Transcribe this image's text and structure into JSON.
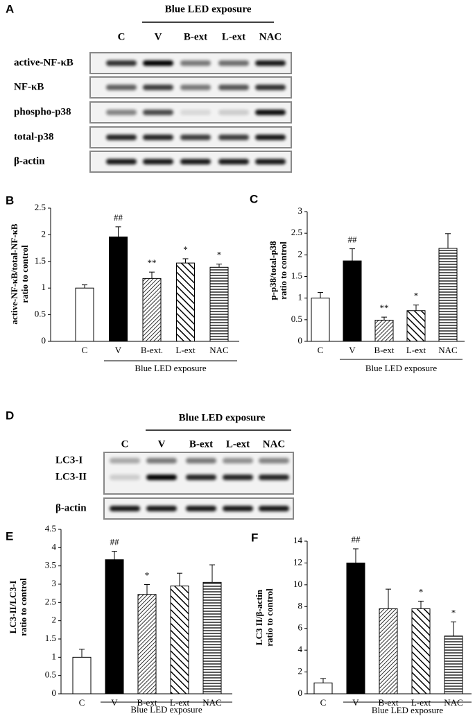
{
  "blots": [
    {
      "panel": "A",
      "header": "Blue LED exposure",
      "lanes": [
        "C",
        "V",
        "B-ext",
        "L-ext",
        "NAC"
      ],
      "rows": [
        "active-NF-κB",
        "NF-κB",
        "phospho-p38",
        "total-p38",
        "β-actin"
      ]
    },
    {
      "panel": "D",
      "header": "Blue LED exposure",
      "lanes": [
        "C",
        "V",
        "B-ext",
        "L-ext",
        "NAC"
      ],
      "rows": [
        "LC3-I",
        "LC3-II",
        "β-actin"
      ]
    }
  ],
  "chart_data": [
    {
      "type": "bar",
      "panel": "B",
      "ylabel": [
        "active-NF-κB/total-NF-κB",
        "ratio to control"
      ],
      "categories": [
        "C",
        "V",
        "B-ext.",
        "L-ext",
        "NAC"
      ],
      "values": [
        1.0,
        1.96,
        1.18,
        1.47,
        1.39
      ],
      "errors": [
        0.06,
        0.19,
        0.12,
        0.08,
        0.06
      ],
      "significance": [
        null,
        "##",
        "**",
        "*",
        "*"
      ],
      "group_label": "Blue LED exposure",
      "ylim": [
        0,
        2.5
      ],
      "yticks": [
        0,
        0.5,
        1,
        1.5,
        2,
        2.5
      ]
    },
    {
      "type": "bar",
      "panel": "C",
      "ylabel": [
        "p-p38/total-p38",
        "ratio to control"
      ],
      "categories": [
        "C",
        "V",
        "B-ext",
        "L-ext",
        "NAC"
      ],
      "values": [
        1.0,
        1.86,
        0.49,
        0.71,
        2.15
      ],
      "errors": [
        0.13,
        0.28,
        0.07,
        0.13,
        0.34
      ],
      "significance": [
        null,
        "##",
        "**",
        "*",
        null
      ],
      "group_label": "Blue LED exposure",
      "ylim": [
        0,
        3
      ],
      "yticks": [
        0,
        0.5,
        1,
        1.5,
        2,
        2.5,
        3
      ]
    },
    {
      "type": "bar",
      "panel": "E",
      "ylabel": [
        "LC3-II/LC3-I",
        "ratio to control"
      ],
      "categories": [
        "C",
        "V",
        "B-ext",
        "L-ext",
        "NAC"
      ],
      "values": [
        1.0,
        3.67,
        2.72,
        2.95,
        3.05
      ],
      "errors": [
        0.22,
        0.23,
        0.27,
        0.35,
        0.48
      ],
      "significance": [
        null,
        "##",
        "*",
        null,
        null
      ],
      "group_label": "Blue LED exposure",
      "ylim": [
        0,
        4.5
      ],
      "yticks": [
        0,
        0.5,
        1,
        1.5,
        2,
        2.5,
        3,
        3.5,
        4,
        4.5
      ]
    },
    {
      "type": "bar",
      "panel": "F",
      "ylabel": [
        "LC3 II/β-actin",
        "ratio to control"
      ],
      "categories": [
        "C",
        "V",
        "B-ext",
        "L-ext",
        "NAC"
      ],
      "values": [
        1.0,
        12.0,
        7.8,
        7.8,
        5.3
      ],
      "errors": [
        0.4,
        1.3,
        1.8,
        0.7,
        1.3
      ],
      "significance": [
        null,
        "##",
        null,
        "*",
        "*"
      ],
      "group_label": "Blue LED exposure",
      "ylim": [
        0,
        14
      ],
      "yticks": [
        0,
        2,
        4,
        6,
        8,
        10,
        12,
        14
      ]
    }
  ]
}
